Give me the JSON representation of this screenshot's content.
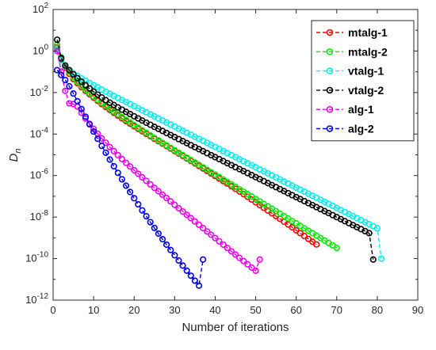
{
  "chart_data": {
    "type": "line",
    "title": "",
    "xlabel": "Number of iterations",
    "ylabel": "D",
    "ylabel_subscript": "n",
    "xlim": [
      0,
      90
    ],
    "ylim": [
      1e-12,
      100
    ],
    "yscale": "log",
    "grid": false,
    "legend_position": "top-right",
    "x_ticks": [
      0,
      10,
      20,
      30,
      40,
      50,
      60,
      70,
      80,
      90
    ],
    "y_tick_exponents": [
      -12,
      -10,
      -8,
      -6,
      -4,
      -2,
      0,
      2
    ],
    "y_tick_base": "10",
    "series": [
      {
        "name": "mtalg-1",
        "color": "#ff0000",
        "x": [
          1,
          2,
          3,
          4,
          5,
          6,
          7,
          8,
          9,
          10,
          11,
          12,
          13,
          14,
          15,
          16,
          17,
          18,
          19,
          20,
          21,
          22,
          23,
          24,
          25,
          26,
          27,
          28,
          29,
          30,
          31,
          32,
          33,
          34,
          35,
          36,
          37,
          38,
          39,
          40,
          41,
          42,
          43,
          44,
          45,
          46,
          47,
          48,
          49,
          50,
          51,
          52,
          53,
          54,
          55,
          56,
          57,
          58,
          59,
          60,
          61,
          62,
          63,
          64,
          65
        ],
        "y": [
          1.5,
          0.4,
          0.16,
          0.08,
          0.045,
          0.028,
          0.018,
          0.012,
          0.0082,
          0.0057,
          0.004,
          0.0028,
          0.002,
          0.00145,
          0.00105,
          0.00077,
          0.00057,
          0.00042,
          0.000315,
          0.000236,
          0.000178,
          0.000135,
          0.000102,
          7.8e-05,
          5.9e-05,
          4.5e-05,
          3.45e-05,
          2.62e-05,
          2e-05,
          1.52e-05,
          1.15e-05,
          8.8e-06,
          6.7e-06,
          5.1e-06,
          3.85e-06,
          2.9e-06,
          2.2e-06,
          1.67e-06,
          1.26e-06,
          9.5e-07,
          7.2e-07,
          5.4e-07,
          4.1e-07,
          3.1e-07,
          2.3e-07,
          1.72e-07,
          1.28e-07,
          9.5e-08,
          7e-08,
          5.2e-08,
          3.8e-08,
          2.8e-08,
          2.07e-08,
          1.52e-08,
          1.12e-08,
          8.2e-09,
          6e-09,
          4.4e-09,
          3.2e-09,
          2.3e-09,
          1.68e-09,
          1.22e-09,
          8.9e-10,
          6.5e-10,
          4.8e-10
        ]
      },
      {
        "name": "mtalg-2",
        "color": "#00ee00",
        "x": [
          1,
          2,
          3,
          4,
          5,
          6,
          7,
          8,
          9,
          10,
          11,
          12,
          13,
          14,
          15,
          16,
          17,
          18,
          19,
          20,
          21,
          22,
          23,
          24,
          25,
          26,
          27,
          28,
          29,
          30,
          31,
          32,
          33,
          34,
          35,
          36,
          37,
          38,
          39,
          40,
          41,
          42,
          43,
          44,
          45,
          46,
          47,
          48,
          49,
          50,
          51,
          52,
          53,
          54,
          55,
          56,
          57,
          58,
          59,
          60,
          61,
          62,
          63,
          64,
          65,
          66,
          67,
          68,
          69,
          70
        ],
        "y": [
          2,
          0.5,
          0.2,
          0.1,
          0.055,
          0.033,
          0.021,
          0.0138,
          0.0093,
          0.0064,
          0.0045,
          0.0032,
          0.0023,
          0.00165,
          0.0012,
          0.00088,
          0.00065,
          0.00048,
          0.000358,
          0.000268,
          0.000201,
          0.000151,
          0.000114,
          8.6e-05,
          6.5e-05,
          4.95e-05,
          3.75e-05,
          2.85e-05,
          2.17e-05,
          1.65e-05,
          1.26e-05,
          9.6e-06,
          7.3e-06,
          5.6e-06,
          4.25e-06,
          3.25e-06,
          2.48e-06,
          1.89e-06,
          1.44e-06,
          1.1e-06,
          8.4e-07,
          6.4e-07,
          4.9e-07,
          3.74e-07,
          2.86e-07,
          2.18e-07,
          1.66e-07,
          1.27e-07,
          9.7e-08,
          7.4e-08,
          5.65e-08,
          4.3e-08,
          3.3e-08,
          2.52e-08,
          1.92e-08,
          1.47e-08,
          1.12e-08,
          8.55e-09,
          6.5e-09,
          4.95e-09,
          3.78e-09,
          2.88e-09,
          2.2e-09,
          1.68e-09,
          1.28e-09,
          9.75e-10,
          7.45e-10,
          5.7e-10,
          4.35e-10,
          3.3e-10
        ]
      },
      {
        "name": "vtalg-1",
        "color": "#00eeee",
        "x": [
          1,
          2,
          3,
          4,
          5,
          6,
          7,
          8,
          9,
          10,
          11,
          12,
          13,
          14,
          15,
          16,
          17,
          18,
          19,
          20,
          21,
          22,
          23,
          24,
          25,
          26,
          27,
          28,
          29,
          30,
          31,
          32,
          33,
          34,
          35,
          36,
          37,
          38,
          39,
          40,
          41,
          42,
          43,
          44,
          45,
          46,
          47,
          48,
          49,
          50,
          51,
          52,
          53,
          54,
          55,
          56,
          57,
          58,
          59,
          60,
          61,
          62,
          63,
          64,
          65,
          66,
          67,
          68,
          69,
          70,
          71,
          72,
          73,
          74,
          75,
          76,
          77,
          78,
          79,
          80,
          81
        ],
        "y": [
          1.2,
          0.35,
          0.18,
          0.12,
          0.085,
          0.063,
          0.048,
          0.037,
          0.0288,
          0.0225,
          0.0177,
          0.0139,
          0.011,
          0.0087,
          0.0069,
          0.0055,
          0.00436,
          0.00347,
          0.00276,
          0.0022,
          0.00175,
          0.00139,
          0.00111,
          0.000885,
          0.000706,
          0.000563,
          0.000449,
          0.000358,
          0.000286,
          0.000228,
          0.000182,
          0.000145,
          0.000116,
          9.25e-05,
          7.38e-05,
          5.89e-05,
          4.7e-05,
          3.75e-05,
          2.99e-05,
          2.39e-05,
          1.91e-05,
          1.52e-05,
          1.21e-05,
          9.7e-06,
          7.74e-06,
          6.18e-06,
          4.93e-06,
          3.93e-06,
          3.14e-06,
          2.51e-06,
          2e-06,
          1.6e-06,
          1.28e-06,
          1.02e-06,
          8.13e-07,
          6.49e-07,
          5.18e-07,
          4.13e-07,
          3.3e-07,
          2.63e-07,
          2.1e-07,
          1.68e-07,
          1.34e-07,
          1.07e-07,
          8.53e-08,
          6.81e-08,
          5.43e-08,
          4.34e-08,
          3.46e-08,
          2.76e-08,
          2.2e-08,
          1.76e-08,
          1.4e-08,
          1.12e-08,
          8.94e-09,
          7.13e-09,
          5.69e-09,
          4.54e-09,
          3.63e-09,
          2.9e-09,
          1e-10
        ]
      },
      {
        "name": "vtalg-2",
        "color": "#000000",
        "x": [
          1,
          2,
          3,
          4,
          5,
          6,
          7,
          8,
          9,
          10,
          11,
          12,
          13,
          14,
          15,
          16,
          17,
          18,
          19,
          20,
          21,
          22,
          23,
          24,
          25,
          26,
          27,
          28,
          29,
          30,
          31,
          32,
          33,
          34,
          35,
          36,
          37,
          38,
          39,
          40,
          41,
          42,
          43,
          44,
          45,
          46,
          47,
          48,
          49,
          50,
          51,
          52,
          53,
          54,
          55,
          56,
          57,
          58,
          59,
          60,
          61,
          62,
          63,
          64,
          65,
          66,
          67,
          68,
          69,
          70,
          71,
          72,
          73,
          74,
          75,
          76,
          77,
          78,
          79
        ],
        "y": [
          3.5,
          0.45,
          0.2,
          0.12,
          0.075,
          0.049,
          0.033,
          0.0225,
          0.0156,
          0.011,
          0.0079,
          0.0058,
          0.0043,
          0.00325,
          0.0025,
          0.00193,
          0.0015,
          0.00117,
          0.000915,
          0.000718,
          0.000565,
          0.000446,
          0.000353,
          0.00028,
          0.000222,
          0.000177,
          0.000141,
          0.000112,
          8.96e-05,
          7.15e-05,
          5.71e-05,
          4.57e-05,
          3.65e-05,
          2.92e-05,
          2.34e-05,
          1.87e-05,
          1.5e-05,
          1.2e-05,
          9.6e-06,
          7.7e-06,
          6.17e-06,
          4.94e-06,
          3.96e-06,
          3.17e-06,
          2.54e-06,
          2.04e-06,
          1.63e-06,
          1.31e-06,
          1.05e-06,
          8.4e-07,
          6.73e-07,
          5.39e-07,
          4.32e-07,
          3.46e-07,
          2.77e-07,
          2.22e-07,
          1.78e-07,
          1.42e-07,
          1.14e-07,
          9.13e-08,
          7.31e-08,
          5.86e-08,
          4.69e-08,
          3.76e-08,
          3.01e-08,
          2.41e-08,
          1.93e-08,
          1.55e-08,
          1.24e-08,
          9.93e-09,
          7.95e-09,
          6.37e-09,
          5.1e-09,
          4.09e-09,
          3.27e-09,
          2.62e-09,
          2.1e-09,
          1.68e-09,
          9e-11
        ]
      },
      {
        "name": "alg-1",
        "color": "#ee00ee",
        "x": [
          1,
          2,
          3,
          4,
          5,
          6,
          7,
          8,
          9,
          10,
          11,
          12,
          13,
          14,
          15,
          16,
          17,
          18,
          19,
          20,
          21,
          22,
          23,
          24,
          25,
          26,
          27,
          28,
          29,
          30,
          31,
          32,
          33,
          34,
          35,
          36,
          37,
          38,
          39,
          40,
          41,
          42,
          43,
          44,
          45,
          46,
          47,
          48,
          49,
          50,
          51
        ],
        "y": [
          1,
          0.1,
          0.012,
          0.003,
          0.0028,
          0.0021,
          0.00105,
          0.00056,
          0.00031,
          0.000178,
          0.000104,
          6.2e-05,
          3.8e-05,
          2.37e-05,
          1.5e-05,
          9.6e-06,
          6.25e-06,
          4.1e-06,
          2.72e-06,
          1.82e-06,
          1.22e-06,
          8.2e-07,
          5.55e-07,
          3.77e-07,
          2.57e-07,
          1.76e-07,
          1.2e-07,
          8.25e-08,
          5.67e-08,
          3.9e-08,
          2.69e-08,
          1.86e-08,
          1.28e-08,
          8.87e-09,
          6.13e-09,
          4.24e-09,
          2.94e-09,
          2.03e-09,
          1.41e-09,
          9.77e-10,
          6.77e-10,
          4.7e-10,
          3.26e-10,
          2.26e-10,
          1.57e-10,
          1.09e-10,
          7.6e-11,
          5.3e-11,
          3.7e-11,
          2.6e-11,
          9e-11
        ]
      },
      {
        "name": "alg-2",
        "color": "#0000ee",
        "x": [
          1,
          2,
          3,
          4,
          5,
          6,
          7,
          8,
          9,
          10,
          11,
          12,
          13,
          14,
          15,
          16,
          17,
          18,
          19,
          20,
          21,
          22,
          23,
          24,
          25,
          26,
          27,
          28,
          29,
          30,
          31,
          32,
          33,
          34,
          35,
          36,
          37
        ],
        "y": [
          0.12,
          0.07,
          0.04,
          0.02,
          0.009,
          0.0038,
          0.0016,
          0.00068,
          0.000295,
          0.000131,
          5.9e-05,
          2.7e-05,
          1.26e-05,
          5.9e-06,
          2.8e-06,
          1.35e-06,
          6.6e-07,
          3.25e-07,
          1.62e-07,
          8.1e-08,
          4.1e-08,
          2.1e-08,
          1.09e-08,
          5.7e-09,
          3e-09,
          1.6e-09,
          8.6e-10,
          4.7e-10,
          2.6e-10,
          1.45e-10,
          8.1e-11,
          4.6e-11,
          2.6e-11,
          1.5e-11,
          8.6e-12,
          5e-12,
          9e-11
        ]
      }
    ]
  }
}
